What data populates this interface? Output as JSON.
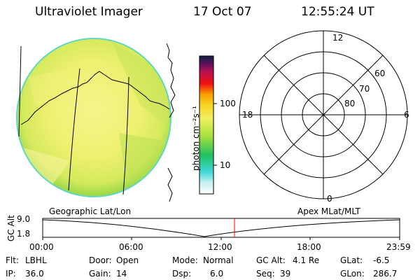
{
  "header": {
    "title": "Ultraviolet Imager",
    "date": "17 Oct 07",
    "time": "12:55:24 UT"
  },
  "colorbar": {
    "unit_label": "photon cm⁻²s⁻¹",
    "ticks": [
      "100",
      "10"
    ]
  },
  "polar_plot": {
    "mlt_labels": {
      "top": "12",
      "left": "18",
      "right": "6",
      "bottom": "0"
    },
    "lat_labels": [
      "60",
      "70",
      "80"
    ]
  },
  "timeline": {
    "left_title": "Geographic Lat/Lon",
    "right_title": "Apex MLat/MLT",
    "y_axis_label": "GC Alt",
    "y_ticks": [
      "9.0",
      "1.8"
    ],
    "x_ticks": [
      "00:00",
      "06:00",
      "12:00",
      "18:00",
      "23:59"
    ],
    "current_time_marker_color": "#ff0000"
  },
  "info": {
    "row1": [
      {
        "label": "Flt:",
        "value": "LBHL"
      },
      {
        "label": "Door:",
        "value": "Open"
      },
      {
        "label": "Mode:",
        "value": "Normal"
      },
      {
        "label": "GC Alt:",
        "value": "4.1 Re"
      },
      {
        "label": "GLat:",
        "value": "-6.5"
      }
    ],
    "row2": [
      {
        "label": "IP:",
        "value": "36.0"
      },
      {
        "label": "Gain:",
        "value": "14"
      },
      {
        "label": "Dsp:",
        "value": "6.0"
      },
      {
        "label": "Seq:",
        "value": "39"
      },
      {
        "label": "GLon:",
        "value": "286.7"
      }
    ]
  }
}
